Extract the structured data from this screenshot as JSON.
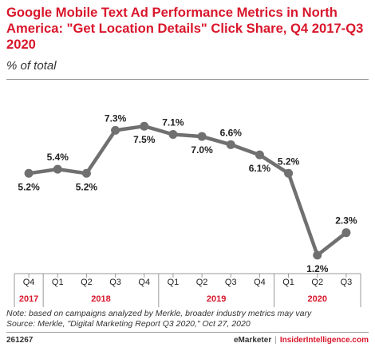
{
  "chart_data": {
    "type": "line",
    "title": "Google Mobile Text Ad Performance Metrics in North America: \"Get Location Details\" Click Share, Q4 2017-Q3 2020",
    "subtitle": "% of total",
    "categories": [
      "Q4",
      "Q1",
      "Q2",
      "Q3",
      "Q4",
      "Q1",
      "Q2",
      "Q3",
      "Q4",
      "Q1",
      "Q2",
      "Q3"
    ],
    "years": [
      {
        "label": "2017",
        "start": 0,
        "end": 0
      },
      {
        "label": "2018",
        "start": 1,
        "end": 4
      },
      {
        "label": "2019",
        "start": 5,
        "end": 8
      },
      {
        "label": "2020",
        "start": 9,
        "end": 11
      }
    ],
    "series": [
      {
        "values": [
          5.2,
          5.4,
          5.2,
          7.3,
          7.5,
          7.1,
          7.0,
          6.6,
          6.1,
          5.2,
          1.2,
          2.3
        ],
        "labels": [
          "5.2%",
          "5.4%",
          "5.2%",
          "7.3%",
          "7.5%",
          "7.1%",
          "7.0%",
          "6.6%",
          "6.1%",
          "5.2%",
          "1.2%",
          "2.3%"
        ],
        "label_position": [
          "below",
          "above",
          "below",
          "above",
          "below",
          "above",
          "below",
          "above",
          "below",
          "above",
          "below",
          "above"
        ]
      }
    ],
    "ylim": [
      0.3,
      8.6
    ],
    "grid": false,
    "line_color": "#707070",
    "year_color": "#d9162b"
  },
  "notes": {
    "note": "Note: based on campaigns analyzed by Merkle, broader industry metrics may vary",
    "source": "Source: Merkle, \"Digital Marketing Report Q3 2020,\"  Oct 27, 2020"
  },
  "footer": {
    "id": "261267",
    "brand_left": "eMarketer",
    "separator": "|",
    "brand_right": "InsiderIntelligence.com"
  }
}
